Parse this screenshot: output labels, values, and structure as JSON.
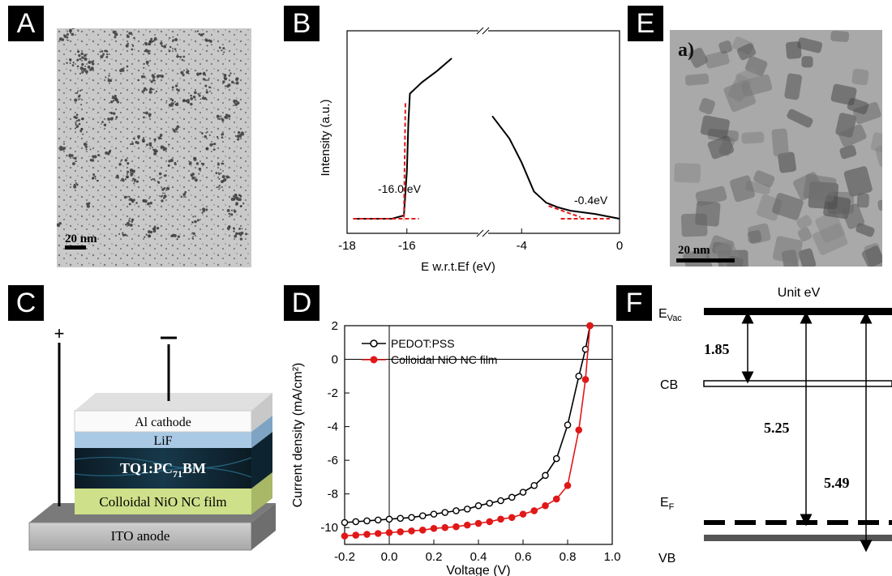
{
  "panels": {
    "A": {
      "tag": "A",
      "scale_bar": "20 nm"
    },
    "B": {
      "tag": "B",
      "ylabel": "Intensity (a.u.)",
      "xlabel": "E w.r.t.Ef (eV)",
      "xticks": [
        "-18",
        "-16",
        "-4",
        "0"
      ],
      "annot_left": "-16.0 eV",
      "annot_right": "-0.4eV"
    },
    "C": {
      "tag": "C",
      "plus": "+",
      "minus": "−",
      "layers": {
        "cathode": "Al cathode",
        "lif": "LiF",
        "active": "TQ1:PC",
        "active_sub": "71",
        "active_end": "BM",
        "hole": "Colloidal NiO NC film",
        "anode": "ITO anode"
      }
    },
    "D": {
      "tag": "D",
      "ylabel": "Current density (mA/cm²)",
      "xlabel": "Voltage (V)",
      "xticks": [
        "-0.2",
        "0.0",
        "0.2",
        "0.4",
        "0.6",
        "0.8",
        "1.0"
      ],
      "yticks": [
        "2",
        "0",
        "-2",
        "-4",
        "-6",
        "-8",
        "-10"
      ],
      "legend": [
        "PEDOT:PSS",
        "Colloidal NiO NC film"
      ]
    },
    "E": {
      "tag": "E",
      "sublabel": "a)",
      "scale_bar": "20 nm"
    },
    "F": {
      "tag": "F",
      "title": "Unit eV",
      "evac": "E",
      "evac_sub": "Vac",
      "cb": "CB",
      "ef": "E",
      "ef_sub": "F",
      "vb": "VB",
      "gap1": "1.85",
      "gap2": "5.25",
      "gap3": "5.49"
    }
  },
  "chart_data": [
    {
      "type": "line",
      "panel": "D",
      "xlabel": "Voltage (V)",
      "ylabel": "Current density (mA/cm²)",
      "xlim": [
        -0.2,
        1.0
      ],
      "ylim": [
        -11,
        2
      ],
      "legend_position": "top-left",
      "series": [
        {
          "name": "PEDOT:PSS",
          "color": "#000000",
          "x": [
            -0.2,
            -0.15,
            -0.1,
            -0.05,
            0.0,
            0.05,
            0.1,
            0.15,
            0.2,
            0.25,
            0.3,
            0.35,
            0.4,
            0.45,
            0.5,
            0.55,
            0.6,
            0.65,
            0.7,
            0.75,
            0.8,
            0.85,
            0.88,
            0.9
          ],
          "y": [
            -9.7,
            -9.65,
            -9.6,
            -9.55,
            -9.5,
            -9.45,
            -9.4,
            -9.3,
            -9.2,
            -9.1,
            -9.0,
            -8.9,
            -8.7,
            -8.55,
            -8.4,
            -8.2,
            -7.9,
            -7.5,
            -6.9,
            -5.9,
            -3.9,
            -1.0,
            0.6,
            2.0
          ]
        },
        {
          "name": "Colloidal NiO NC film",
          "color": "#e01818",
          "x": [
            -0.2,
            -0.15,
            -0.1,
            -0.05,
            0.0,
            0.05,
            0.1,
            0.15,
            0.2,
            0.25,
            0.3,
            0.35,
            0.4,
            0.45,
            0.5,
            0.55,
            0.6,
            0.65,
            0.7,
            0.75,
            0.8,
            0.85,
            0.88,
            0.9
          ],
          "y": [
            -10.5,
            -10.45,
            -10.4,
            -10.35,
            -10.3,
            -10.25,
            -10.2,
            -10.15,
            -10.05,
            -10.0,
            -9.95,
            -9.85,
            -9.75,
            -9.65,
            -9.5,
            -9.4,
            -9.2,
            -9.0,
            -8.7,
            -8.3,
            -7.5,
            -4.2,
            -1.2,
            2.0
          ]
        }
      ]
    },
    {
      "type": "line",
      "panel": "B",
      "xlabel": "E w.r.t.Ef (eV)",
      "ylabel": "Intensity (a.u.)",
      "axis_break": true,
      "series": [
        {
          "x": [
            -17.8,
            -16.5,
            -16.1,
            -16.0,
            -15.95,
            -15.9,
            -15.5,
            -15.0,
            -14.5
          ],
          "y": [
            0.0,
            0.0,
            0.02,
            0.3,
            0.6,
            0.78,
            0.85,
            0.92,
            1.0
          ]
        },
        {
          "x": [
            -5.2,
            -5.0,
            -4.5,
            -4.0,
            -3.5,
            -3.0,
            -2.5,
            -2.0,
            -1.0,
            0.0
          ],
          "y": [
            0.64,
            0.6,
            0.5,
            0.35,
            0.17,
            0.1,
            0.07,
            0.05,
            0.03,
            0.0
          ]
        }
      ]
    }
  ]
}
